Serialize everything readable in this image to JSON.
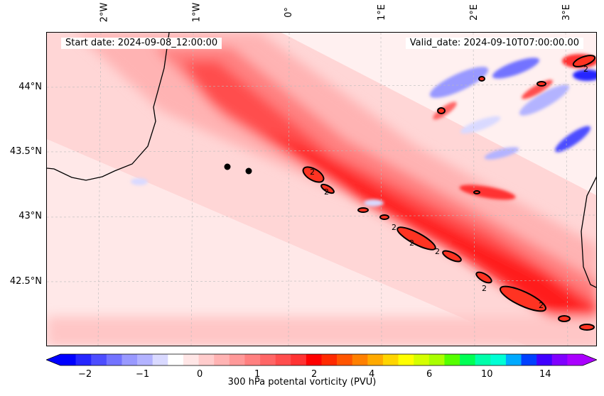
{
  "map": {
    "start_date": "Start date: 2024-09-08_12:00:00",
    "valid_date": "Valid_date: 2024-09-10T07:00:00.00",
    "lon_labels": [
      "2°W",
      "1°W",
      "0°",
      "1°E",
      "2°E",
      "3°E"
    ],
    "lat_labels": [
      "44°N",
      "43.5°N",
      "43°N",
      "42.5°N"
    ],
    "contour_label": "2",
    "features": [
      "coastline",
      "vorticity-band",
      "blue-eddies",
      "station-markers"
    ]
  },
  "colorbar": {
    "title": "300 hPa potental vorticity (PVU)",
    "ticks": [
      "−2",
      "−1",
      "0",
      "1",
      "2",
      "4",
      "6",
      "10",
      "14"
    ],
    "colors": [
      "#0000ff",
      "#2626ff",
      "#4d4dff",
      "#7373ff",
      "#9999ff",
      "#b3b3ff",
      "#d9d9ff",
      "#ffffff",
      "#ffe6e6",
      "#ffcccc",
      "#ffb3b3",
      "#ff9999",
      "#ff8080",
      "#ff6666",
      "#ff4d4d",
      "#ff3333",
      "#ff0000",
      "#ff2a00",
      "#ff5500",
      "#ff8000",
      "#ffaa00",
      "#ffd500",
      "#ffff00",
      "#d5ff00",
      "#aaff00",
      "#55ff00",
      "#00ff55",
      "#00ffaa",
      "#00ffd5",
      "#00aaff",
      "#0040ff",
      "#4000ff",
      "#8000ff",
      "#aa00ff"
    ]
  }
}
